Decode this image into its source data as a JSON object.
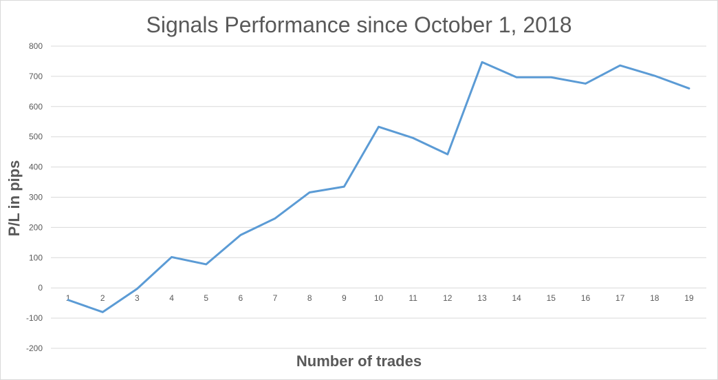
{
  "chart_data": {
    "type": "line",
    "title": "Signals Performance since October 1, 2018",
    "xlabel": "Number of trades",
    "ylabel": "P/L in pips",
    "ylim": [
      -200,
      800
    ],
    "yticks": [
      800,
      700,
      600,
      500,
      400,
      300,
      200,
      100,
      0,
      -100,
      -200
    ],
    "categories": [
      "1",
      "2",
      "3",
      "4",
      "5",
      "6",
      "7",
      "8",
      "9",
      "10",
      "11",
      "12",
      "13",
      "14",
      "15",
      "16",
      "17",
      "18",
      "19"
    ],
    "values": [
      -40,
      -80,
      -3,
      102,
      78,
      175,
      230,
      316,
      335,
      533,
      496,
      442,
      747,
      697,
      697,
      676,
      736,
      702,
      660
    ],
    "grid": true,
    "legend": "none",
    "line_color": "#5b9bd5"
  }
}
